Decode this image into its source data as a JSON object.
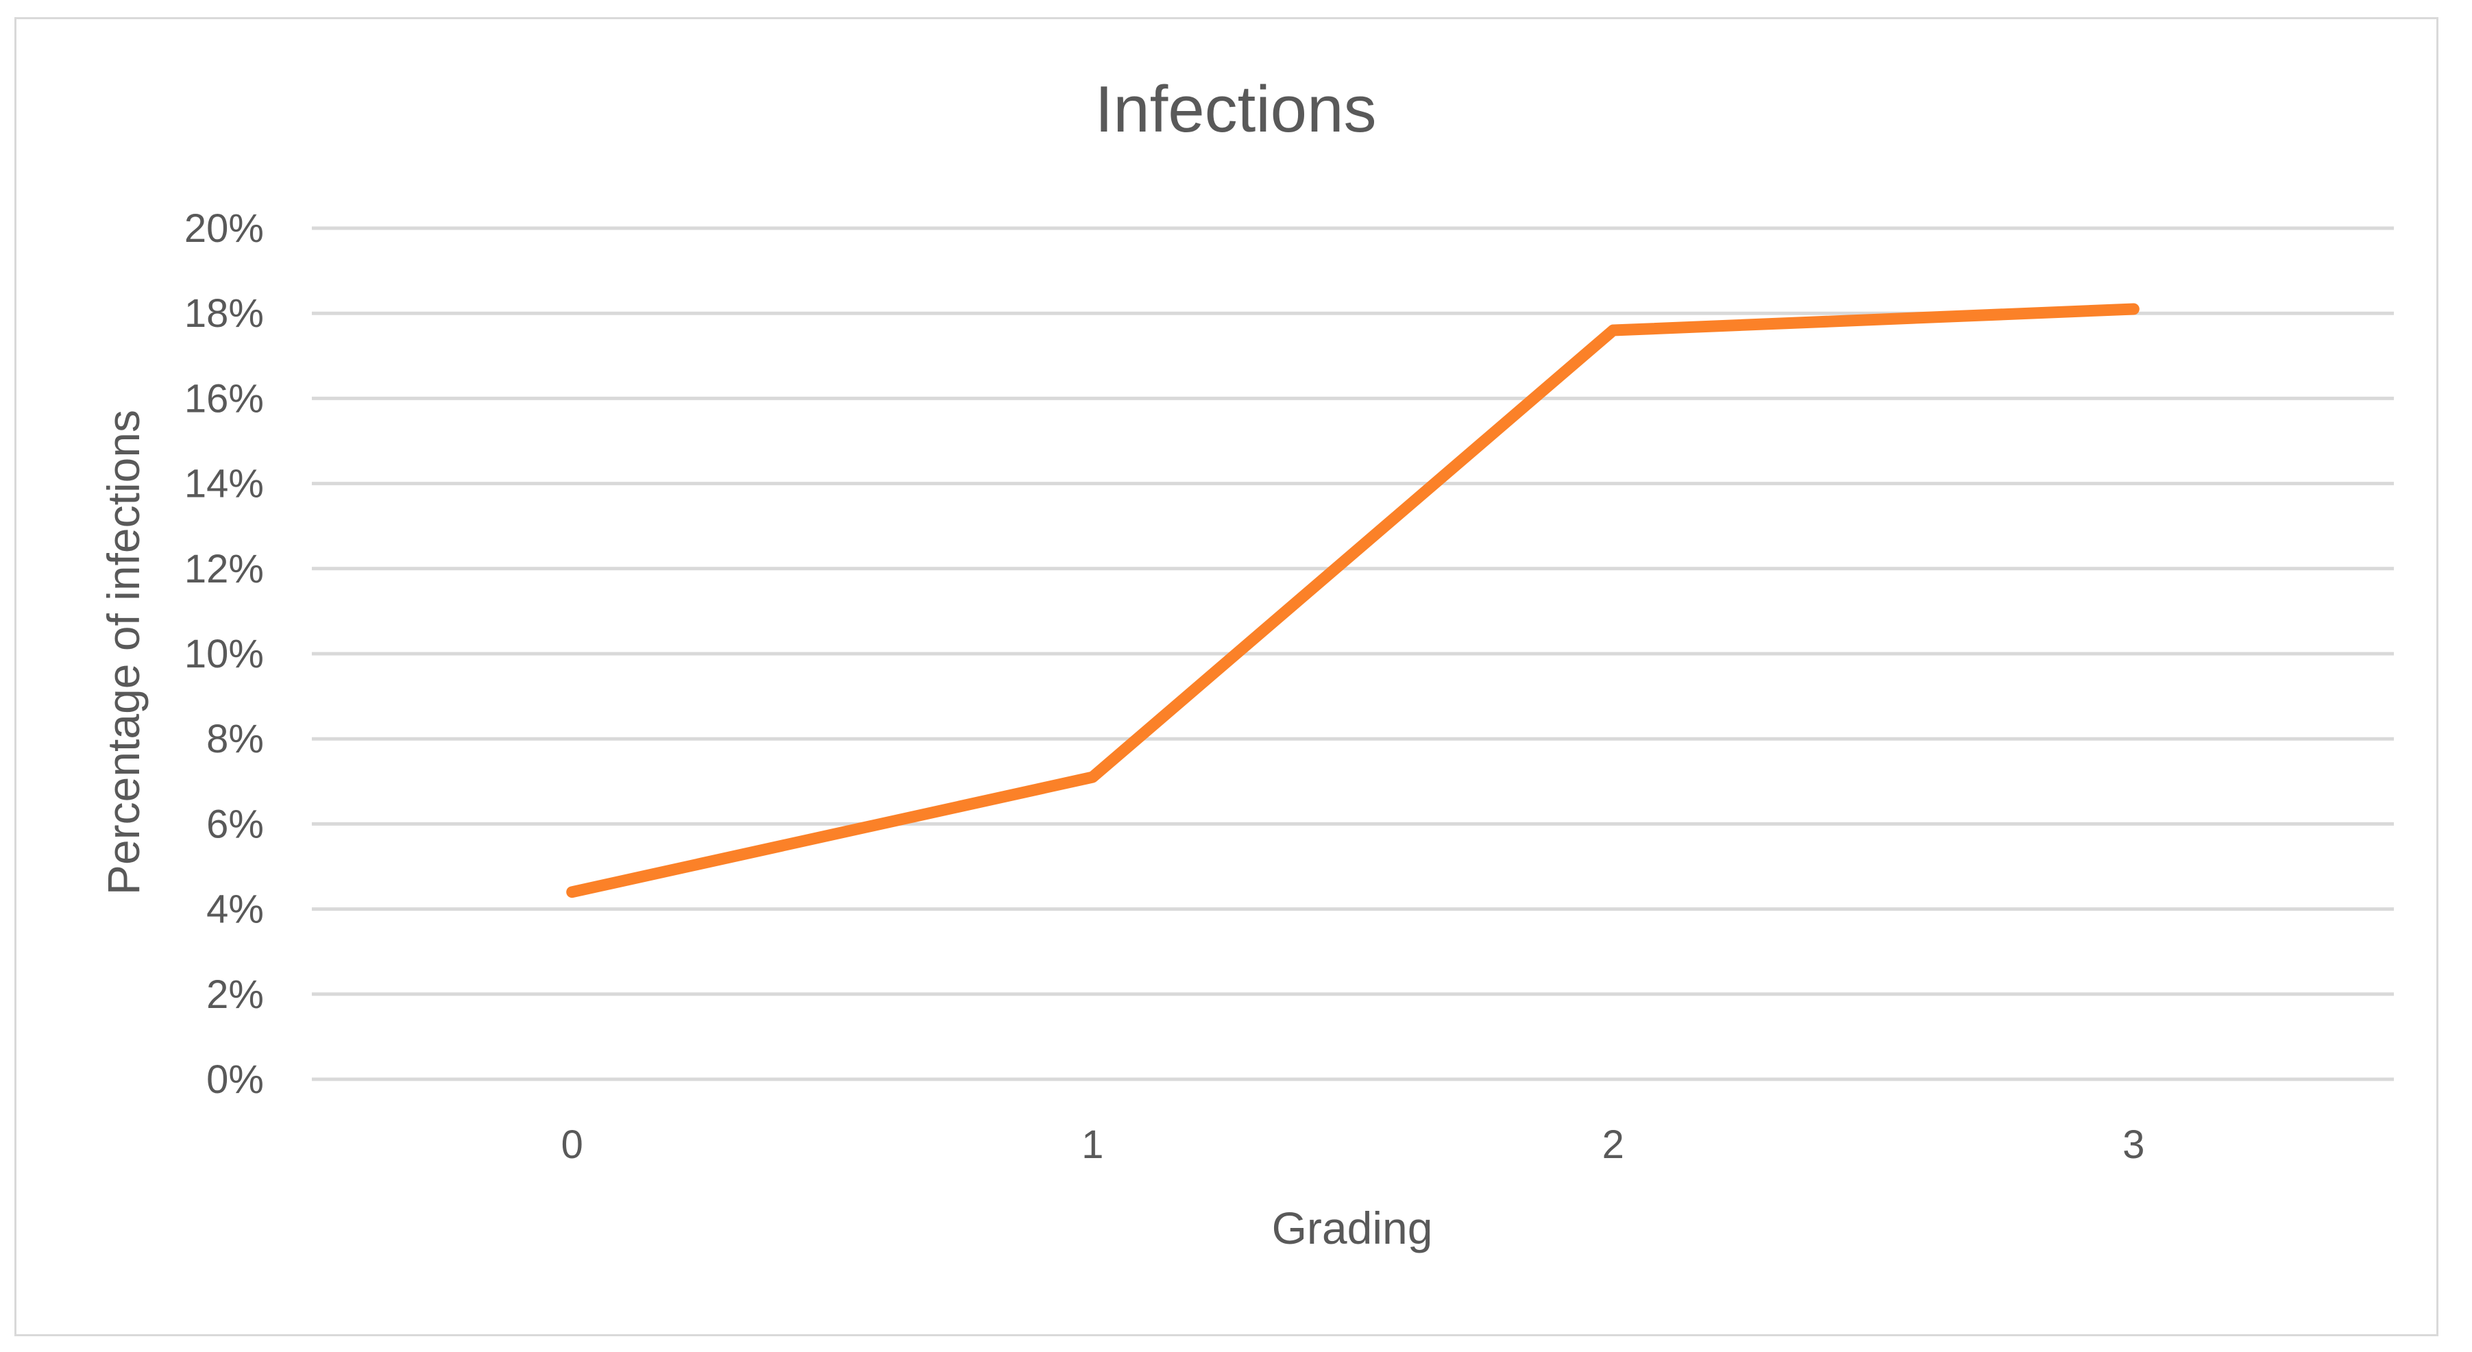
{
  "chart_data": {
    "type": "line",
    "title": "Infections",
    "xlabel": "Grading",
    "ylabel": "Percentage of infections",
    "categories": [
      "0",
      "1",
      "2",
      "3"
    ],
    "series": [
      {
        "values": [
          4.4,
          7.1,
          17.6,
          18.1
        ],
        "color": "#fb8128"
      }
    ],
    "y_ticks": [
      "0%",
      "2%",
      "4%",
      "6%",
      "8%",
      "10%",
      "12%",
      "14%",
      "16%",
      "18%",
      "20%"
    ],
    "ylim": [
      0,
      20
    ],
    "y_tick_step": 2,
    "grid": true,
    "legend": "none"
  }
}
